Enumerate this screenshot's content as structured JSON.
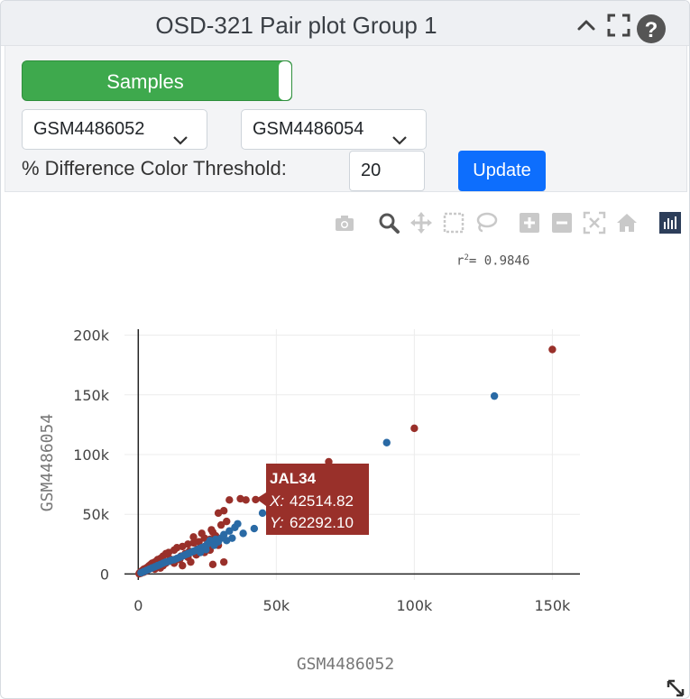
{
  "header": {
    "title": "OSD-321 Pair plot Group 1",
    "icons": [
      "chevron-up-icon",
      "fullscreen-icon",
      "help-icon"
    ]
  },
  "controls": {
    "toggle_label": "Samples",
    "sample_x": "GSM4486052",
    "sample_y": "GSM4486054",
    "threshold_label": "% Difference Color Threshold:",
    "threshold_value": "20",
    "update_label": "Update"
  },
  "colors": {
    "red": "#99302a",
    "blue": "#2a6aa5",
    "accent": "#0d6efd",
    "toggle": "#3ea94d"
  },
  "modebar": [
    "camera-icon",
    "zoom-icon",
    "pan-icon",
    "box-select-icon",
    "lasso-icon",
    "zoom-in-icon",
    "zoom-out-icon",
    "autoscale-icon",
    "home-icon",
    "plotly-logo-icon"
  ],
  "plot": {
    "r2_label": "r",
    "r2_sup": "2",
    "r2_value": "= 0.9846"
  },
  "tooltip": {
    "name": "JAL34",
    "x_label": "X:",
    "x_value": "42514.82",
    "y_label": "Y:",
    "y_value": "62292.10"
  },
  "chart_data": {
    "type": "scatter",
    "xlabel": "GSM4486052",
    "ylabel": "GSM4486054",
    "xlim": [
      -5000,
      160000
    ],
    "ylim": [
      -5000,
      205000
    ],
    "xticks": [
      0,
      50000,
      100000,
      150000
    ],
    "xtick_labels": [
      "0",
      "50k",
      "100k",
      "150k"
    ],
    "yticks": [
      0,
      50000,
      100000,
      150000,
      200000
    ],
    "ytick_labels": [
      "0",
      "50k",
      "100k",
      "150k",
      "200k"
    ],
    "grid": true,
    "series": [
      {
        "color": "#99302a",
        "points": [
          [
            150000,
            188000
          ],
          [
            100000,
            122000
          ],
          [
            69000,
            94000
          ],
          [
            42514.82,
            62292.1
          ],
          [
            39000,
            62000
          ],
          [
            37000,
            63000
          ],
          [
            33000,
            62000
          ],
          [
            31000,
            53000
          ],
          [
            29000,
            51000
          ],
          [
            32000,
            44000
          ],
          [
            30000,
            41000
          ],
          [
            27000,
            35000
          ],
          [
            24000,
            30000
          ],
          [
            26000,
            29000
          ],
          [
            22000,
            27000
          ],
          [
            20000,
            26000
          ],
          [
            18000,
            25000
          ],
          [
            16000,
            23000
          ],
          [
            14000,
            22000
          ],
          [
            13000,
            20000
          ],
          [
            11000,
            18000
          ],
          [
            10000,
            17000
          ],
          [
            9000,
            15000
          ],
          [
            8000,
            13000
          ],
          [
            7000,
            12000
          ],
          [
            6000,
            10000
          ],
          [
            5000,
            9000
          ],
          [
            4500,
            8000
          ],
          [
            4000,
            7000
          ],
          [
            3500,
            6000
          ],
          [
            3000,
            5000
          ],
          [
            2500,
            4500
          ],
          [
            2000,
            4000
          ],
          [
            1500,
            3000
          ],
          [
            1000,
            2000
          ],
          [
            500,
            1000
          ],
          [
            12000,
            11000
          ],
          [
            15000,
            12000
          ],
          [
            18000,
            14000
          ],
          [
            21000,
            16000
          ],
          [
            19000,
            10000
          ],
          [
            24000,
            18000
          ],
          [
            26000,
            20000
          ],
          [
            29000,
            24000
          ],
          [
            31000,
            10000
          ],
          [
            27000,
            8000
          ],
          [
            16000,
            7000
          ],
          [
            10000,
            9000
          ],
          [
            8000,
            5000
          ],
          [
            6000,
            4000
          ],
          [
            20000,
            31000
          ],
          [
            23000,
            34000
          ],
          [
            25000,
            22000
          ],
          [
            17000,
            17000
          ],
          [
            13000,
            9000
          ],
          [
            9000,
            7000
          ],
          [
            3000,
            2500
          ],
          [
            2000,
            1500
          ],
          [
            1000,
            600
          ],
          [
            300,
            200
          ],
          [
            28000,
            32000
          ],
          [
            26500,
            37000
          ],
          [
            21500,
            21000
          ],
          [
            18500,
            19000
          ],
          [
            15500,
            15000
          ],
          [
            11500,
            12500
          ],
          [
            7500,
            8500
          ],
          [
            5500,
            6500
          ]
        ]
      },
      {
        "color": "#2a6aa5",
        "points": [
          [
            129000,
            149000
          ],
          [
            90000,
            110000
          ],
          [
            45000,
            51000
          ],
          [
            36000,
            42000
          ],
          [
            35000,
            39000
          ],
          [
            33000,
            36000
          ],
          [
            31000,
            33000
          ],
          [
            30000,
            30000
          ],
          [
            28000,
            29000
          ],
          [
            26000,
            28000
          ],
          [
            27000,
            26000
          ],
          [
            25000,
            25000
          ],
          [
            24000,
            23000
          ],
          [
            23000,
            22000
          ],
          [
            22000,
            21000
          ],
          [
            21000,
            20000
          ],
          [
            20000,
            19000
          ],
          [
            19000,
            18000
          ],
          [
            18000,
            17000
          ],
          [
            17000,
            16000
          ],
          [
            16000,
            15000
          ],
          [
            15000,
            14000
          ],
          [
            14000,
            13000
          ],
          [
            13000,
            12000
          ],
          [
            12000,
            11500
          ],
          [
            11000,
            10500
          ],
          [
            10000,
            10000
          ],
          [
            9000,
            9000
          ],
          [
            8000,
            8000
          ],
          [
            7000,
            7000
          ],
          [
            6000,
            6000
          ],
          [
            5000,
            5000
          ],
          [
            4000,
            4000
          ],
          [
            3000,
            3000
          ],
          [
            2000,
            2000
          ],
          [
            1000,
            1000
          ],
          [
            42000,
            38000
          ],
          [
            38000,
            34000
          ],
          [
            34000,
            30000
          ],
          [
            32000,
            28000
          ],
          [
            29000,
            27000
          ],
          [
            27500,
            24000
          ],
          [
            24500,
            20500
          ],
          [
            22500,
            18000
          ]
        ]
      }
    ]
  }
}
